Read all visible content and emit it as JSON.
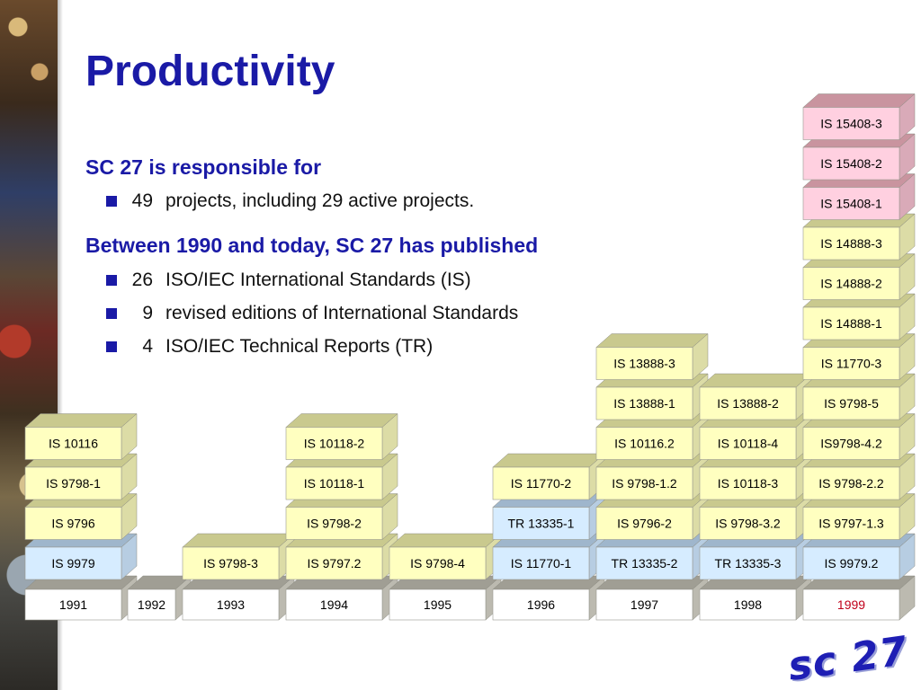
{
  "title": "Productivity",
  "section1": {
    "heading": "SC 27 is responsible for",
    "bullets": [
      {
        "number": "49",
        "text": "projects, including 29 active projects."
      }
    ]
  },
  "section2": {
    "heading": "Between 1990 and today, SC 27 has published",
    "bullets": [
      {
        "number": "26",
        "text": "ISO/IEC International Standards (IS)"
      },
      {
        "number": "9",
        "text": "revised editions of International Standards"
      },
      {
        "number": "4",
        "text": "ISO/IEC Technical Reports (TR)"
      }
    ]
  },
  "logo": "sc 27",
  "colors": {
    "title": "#1a1aa6",
    "yellow_block": "#ffffc0",
    "blue_block": "#d6ecff",
    "pink_block": "#ffd0e0",
    "highlight_year": "#c0001a"
  },
  "chart_data": {
    "type": "stacked-blocks",
    "years": [
      "1991",
      "1992",
      "1993",
      "1994",
      "1995",
      "1996",
      "1997",
      "1998",
      "1999"
    ],
    "highlighted_year": "1999",
    "columns": [
      {
        "year": "1991",
        "blocks": [
          {
            "label": "IS 9979",
            "color": "blue"
          },
          {
            "label": "IS 9796",
            "color": "yellow"
          },
          {
            "label": "IS 9798-1",
            "color": "yellow"
          },
          {
            "label": "IS 10116",
            "color": "yellow"
          }
        ]
      },
      {
        "year": "1992",
        "blocks": []
      },
      {
        "year": "1993",
        "blocks": [
          {
            "label": "IS 9798-3",
            "color": "yellow"
          }
        ]
      },
      {
        "year": "1994",
        "blocks": [
          {
            "label": "IS 9797.2",
            "color": "yellow"
          },
          {
            "label": "IS 9798-2",
            "color": "yellow"
          },
          {
            "label": "IS 10118-1",
            "color": "yellow"
          },
          {
            "label": "IS 10118-2",
            "color": "yellow"
          }
        ]
      },
      {
        "year": "1995",
        "blocks": [
          {
            "label": "IS 9798-4",
            "color": "yellow"
          }
        ]
      },
      {
        "year": "1996",
        "blocks": [
          {
            "label": "IS 11770-1",
            "color": "blue"
          },
          {
            "label": "TR 13335-1",
            "color": "blue"
          },
          {
            "label": "IS 11770-2",
            "color": "yellow"
          }
        ]
      },
      {
        "year": "1997",
        "blocks": [
          {
            "label": "TR 13335-2",
            "color": "blue"
          },
          {
            "label": "IS 9796-2",
            "color": "yellow"
          },
          {
            "label": "IS 9798-1.2",
            "color": "yellow"
          },
          {
            "label": "IS 10116.2",
            "color": "yellow"
          },
          {
            "label": "IS 13888-1",
            "color": "yellow"
          },
          {
            "label": "IS 13888-3",
            "color": "yellow"
          }
        ]
      },
      {
        "year": "1998",
        "blocks": [
          {
            "label": "TR 13335-3",
            "color": "blue"
          },
          {
            "label": "IS 9798-3.2",
            "color": "yellow"
          },
          {
            "label": "IS 10118-3",
            "color": "yellow"
          },
          {
            "label": "IS 10118-4",
            "color": "yellow"
          },
          {
            "label": "IS 13888-2",
            "color": "yellow"
          }
        ]
      },
      {
        "year": "1999",
        "blocks": [
          {
            "label": "IS 9979.2",
            "color": "blue"
          },
          {
            "label": "IS 9797-1.3",
            "color": "yellow"
          },
          {
            "label": "IS 9798-2.2",
            "color": "yellow"
          },
          {
            "label": "IS9798-4.2",
            "color": "yellow"
          },
          {
            "label": "IS 9798-5",
            "color": "yellow"
          },
          {
            "label": "IS 11770-3",
            "color": "yellow"
          },
          {
            "label": "IS 14888-1",
            "color": "yellow"
          },
          {
            "label": "IS 14888-2",
            "color": "yellow"
          },
          {
            "label": "IS 14888-3",
            "color": "yellow"
          },
          {
            "label": "IS 15408-1",
            "color": "pink"
          },
          {
            "label": "IS 15408-2",
            "color": "pink"
          },
          {
            "label": "IS 15408-3",
            "color": "pink"
          }
        ]
      }
    ]
  }
}
